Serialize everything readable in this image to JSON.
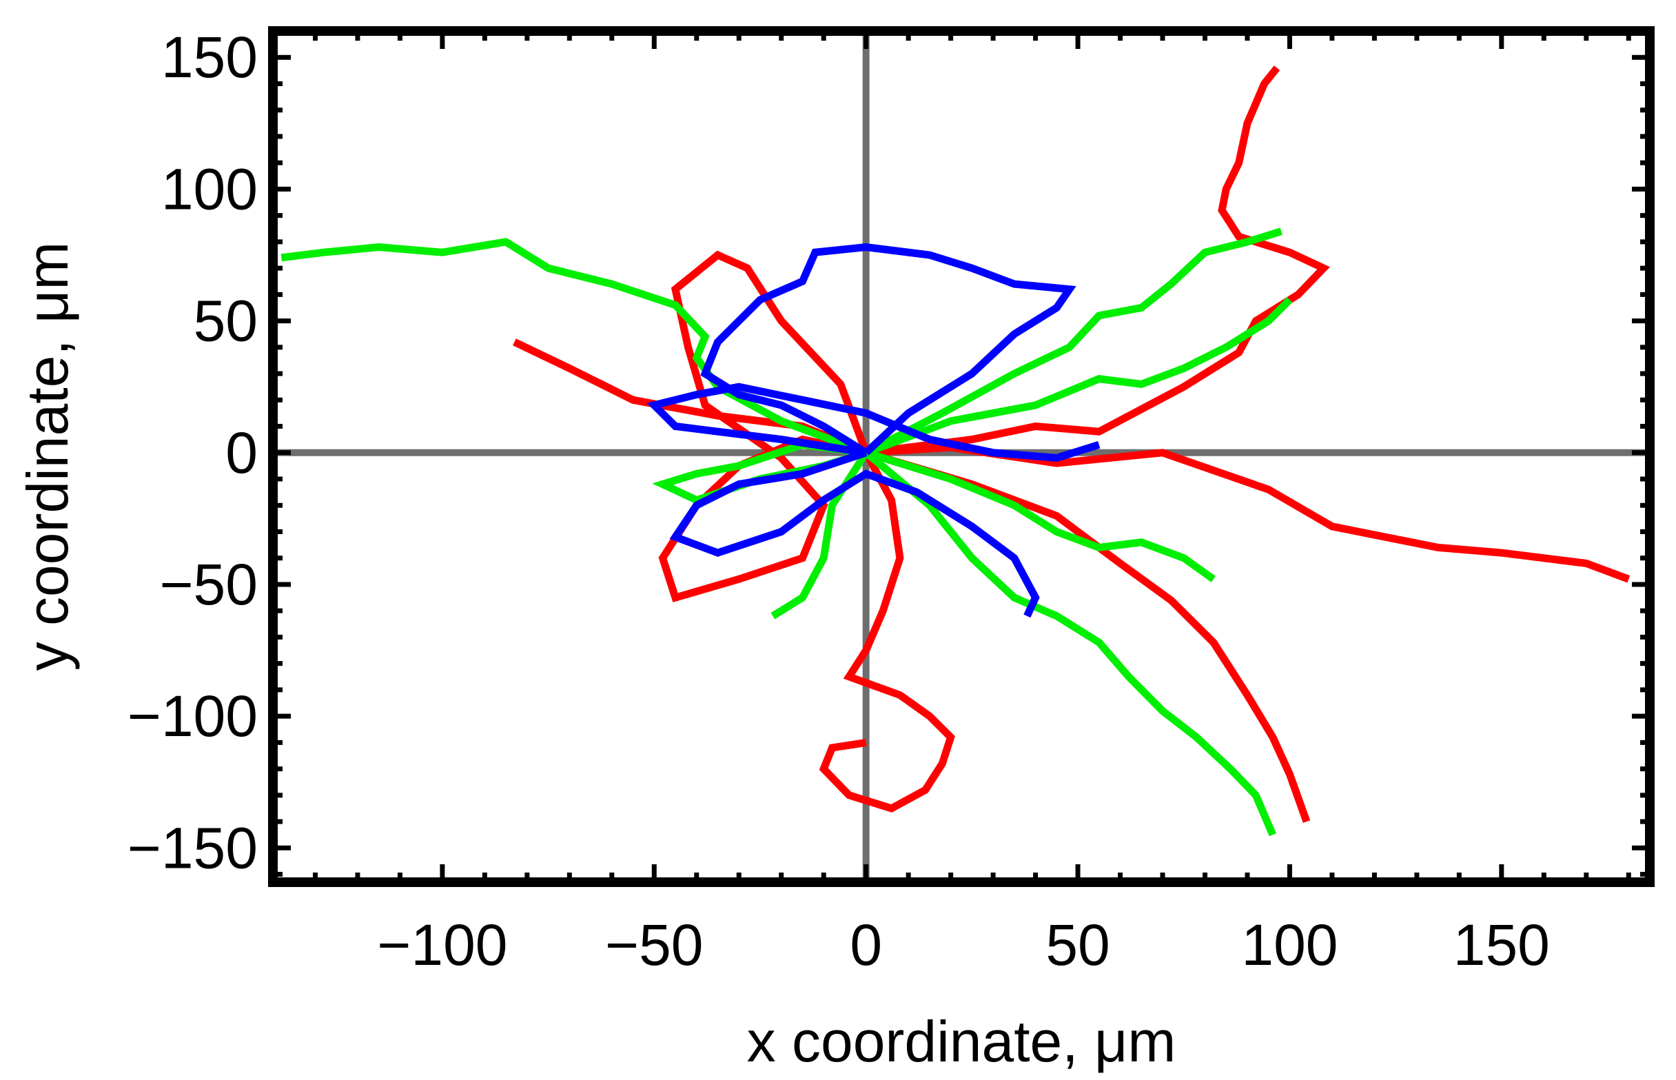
{
  "chart_data": {
    "type": "line",
    "title": "",
    "xlabel": "x coordinate, μm",
    "ylabel": "y coordinate, μm",
    "xlim": [
      -140,
      185
    ],
    "ylim": [
      -163,
      160
    ],
    "xticks": [
      -100,
      -50,
      0,
      50,
      100,
      150
    ],
    "yticks": [
      -150,
      -100,
      -50,
      0,
      50,
      100,
      150
    ],
    "xtick_labels": [
      "−100",
      "−50",
      "0",
      "50",
      "100",
      "150"
    ],
    "ytick_labels": [
      "−150",
      "−100",
      "−50",
      "0",
      "50",
      "100",
      "150"
    ],
    "grid": false,
    "legend": "none",
    "zero_lines_color": "#6e6e6e",
    "series": [
      {
        "color": "#ff0000",
        "points": [
          [
            0,
            0
          ],
          [
            20,
            2
          ],
          [
            45,
            -4
          ],
          [
            70,
            0
          ],
          [
            95,
            -14
          ],
          [
            110,
            -28
          ],
          [
            135,
            -36
          ],
          [
            150,
            -38
          ],
          [
            170,
            -42
          ],
          [
            180,
            -48
          ]
        ]
      },
      {
        "color": "#ff0000",
        "points": [
          [
            0,
            0
          ],
          [
            25,
            5
          ],
          [
            40,
            10
          ],
          [
            55,
            8
          ],
          [
            75,
            25
          ],
          [
            88,
            38
          ],
          [
            92,
            50
          ],
          [
            102,
            60
          ],
          [
            108,
            70
          ],
          [
            100,
            76
          ],
          [
            88,
            82
          ],
          [
            84,
            92
          ],
          [
            85,
            100
          ],
          [
            88,
            110
          ],
          [
            90,
            125
          ],
          [
            94,
            140
          ],
          [
            97,
            146
          ]
        ]
      },
      {
        "color": "#ff0000",
        "points": [
          [
            0,
            0
          ],
          [
            -15,
            10
          ],
          [
            -35,
            14
          ],
          [
            -55,
            20
          ],
          [
            -70,
            32
          ],
          [
            -83,
            42
          ]
        ]
      },
      {
        "color": "#ff0000",
        "points": [
          [
            0,
            0
          ],
          [
            -6,
            26
          ],
          [
            -20,
            50
          ],
          [
            -28,
            70
          ],
          [
            -35,
            75
          ],
          [
            -45,
            62
          ],
          [
            -42,
            40
          ],
          [
            -38,
            18
          ],
          [
            -20,
            -2
          ],
          [
            -10,
            -20
          ],
          [
            -15,
            -40
          ],
          [
            -30,
            -48
          ],
          [
            -45,
            -55
          ],
          [
            -48,
            -40
          ],
          [
            -40,
            -20
          ],
          [
            -30,
            -5
          ],
          [
            -15,
            5
          ],
          [
            0,
            0
          ]
        ]
      },
      {
        "color": "#ff0000",
        "points": [
          [
            0,
            0
          ],
          [
            6,
            -18
          ],
          [
            8,
            -40
          ],
          [
            4,
            -60
          ],
          [
            0,
            -75
          ],
          [
            -4,
            -85
          ],
          [
            8,
            -92
          ],
          [
            15,
            -100
          ],
          [
            20,
            -108
          ],
          [
            18,
            -118
          ],
          [
            14,
            -128
          ],
          [
            6,
            -135
          ],
          [
            -4,
            -130
          ],
          [
            -10,
            -120
          ],
          [
            -8,
            -112
          ],
          [
            0,
            -110
          ]
        ]
      },
      {
        "color": "#ff0000",
        "points": [
          [
            0,
            0
          ],
          [
            25,
            -12
          ],
          [
            45,
            -24
          ],
          [
            60,
            -42
          ],
          [
            72,
            -56
          ],
          [
            82,
            -72
          ],
          [
            90,
            -92
          ],
          [
            96,
            -108
          ],
          [
            100,
            -122
          ],
          [
            104,
            -140
          ]
        ]
      },
      {
        "color": "#00ee00",
        "points": [
          [
            0,
            0
          ],
          [
            -15,
            3
          ],
          [
            -30,
            -5
          ],
          [
            -40,
            -8
          ],
          [
            -48,
            -12
          ],
          [
            -40,
            -18
          ],
          [
            -25,
            -10
          ],
          [
            -10,
            -5
          ],
          [
            0,
            0
          ]
        ]
      },
      {
        "color": "#00ee00",
        "points": [
          [
            0,
            0
          ],
          [
            -20,
            12
          ],
          [
            -35,
            25
          ],
          [
            -40,
            36
          ],
          [
            -38,
            44
          ],
          [
            -45,
            56
          ],
          [
            -60,
            64
          ],
          [
            -75,
            70
          ],
          [
            -85,
            80
          ],
          [
            -100,
            76
          ],
          [
            -115,
            78
          ],
          [
            -128,
            76
          ],
          [
            -138,
            74
          ]
        ]
      },
      {
        "color": "#00ee00",
        "points": [
          [
            0,
            0
          ],
          [
            20,
            -10
          ],
          [
            35,
            -20
          ],
          [
            45,
            -30
          ],
          [
            55,
            -36
          ],
          [
            65,
            -34
          ],
          [
            75,
            -40
          ],
          [
            82,
            -48
          ]
        ]
      },
      {
        "color": "#00ee00",
        "points": [
          [
            0,
            0
          ],
          [
            20,
            12
          ],
          [
            40,
            18
          ],
          [
            55,
            28
          ],
          [
            65,
            26
          ],
          [
            75,
            32
          ],
          [
            85,
            40
          ],
          [
            95,
            50
          ],
          [
            100,
            58
          ]
        ]
      },
      {
        "color": "#00ee00",
        "points": [
          [
            0,
            0
          ],
          [
            18,
            15
          ],
          [
            35,
            30
          ],
          [
            48,
            40
          ],
          [
            55,
            52
          ],
          [
            65,
            55
          ],
          [
            72,
            64
          ],
          [
            80,
            76
          ],
          [
            90,
            80
          ],
          [
            98,
            84
          ]
        ]
      },
      {
        "color": "#00ee00",
        "points": [
          [
            0,
            0
          ],
          [
            15,
            -20
          ],
          [
            25,
            -40
          ],
          [
            35,
            -55
          ],
          [
            45,
            -62
          ],
          [
            55,
            -72
          ],
          [
            62,
            -85
          ],
          [
            70,
            -98
          ],
          [
            78,
            -108
          ],
          [
            86,
            -120
          ],
          [
            92,
            -130
          ],
          [
            96,
            -145
          ]
        ]
      },
      {
        "color": "#00ee00",
        "points": [
          [
            0,
            0
          ],
          [
            -8,
            -20
          ],
          [
            -10,
            -40
          ],
          [
            -15,
            -55
          ],
          [
            -22,
            -62
          ]
        ]
      },
      {
        "color": "#0000ff",
        "points": [
          [
            0,
            0
          ],
          [
            -20,
            5
          ],
          [
            -35,
            8
          ],
          [
            -45,
            10
          ],
          [
            -50,
            18
          ],
          [
            -40,
            22
          ],
          [
            -30,
            25
          ],
          [
            -15,
            20
          ],
          [
            0,
            15
          ],
          [
            15,
            5
          ],
          [
            30,
            0
          ],
          [
            45,
            -2
          ],
          [
            55,
            3
          ]
        ]
      },
      {
        "color": "#0000ff",
        "points": [
          [
            0,
            0
          ],
          [
            -15,
            -8
          ],
          [
            -30,
            -12
          ],
          [
            -40,
            -20
          ],
          [
            -45,
            -32
          ],
          [
            -35,
            -38
          ],
          [
            -20,
            -30
          ],
          [
            -10,
            -18
          ],
          [
            0,
            -8
          ],
          [
            12,
            -15
          ],
          [
            25,
            -28
          ],
          [
            35,
            -40
          ],
          [
            40,
            -55
          ],
          [
            38,
            -62
          ]
        ]
      },
      {
        "color": "#0000ff",
        "points": [
          [
            0,
            0
          ],
          [
            10,
            15
          ],
          [
            25,
            30
          ],
          [
            35,
            45
          ],
          [
            45,
            55
          ],
          [
            48,
            62
          ],
          [
            35,
            64
          ],
          [
            25,
            70
          ],
          [
            15,
            75
          ],
          [
            0,
            78
          ],
          [
            -12,
            76
          ],
          [
            -15,
            65
          ],
          [
            -25,
            58
          ],
          [
            -30,
            50
          ],
          [
            -35,
            42
          ],
          [
            -38,
            30
          ],
          [
            -30,
            22
          ],
          [
            -20,
            18
          ],
          [
            -10,
            10
          ],
          [
            0,
            0
          ]
        ]
      }
    ]
  }
}
